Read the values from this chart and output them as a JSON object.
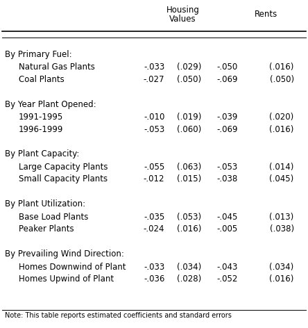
{
  "title_line1": "Housing",
  "title_line2": "Values",
  "title_rents": "Rents",
  "sections": [
    {
      "header": "By Primary Fuel:",
      "rows": [
        {
          "label": "Natural Gas Plants",
          "hv_coef": "-.033",
          "hv_se": "(.029)",
          "r_coef": "-.050",
          "r_se": "(.016)"
        },
        {
          "label": "Coal Plants",
          "hv_coef": "-.027",
          "hv_se": "(.050)",
          "r_coef": "-.069",
          "r_se": "(.050)"
        }
      ]
    },
    {
      "header": "By Year Plant Opened:",
      "rows": [
        {
          "label": "1991-1995",
          "hv_coef": "-.010",
          "hv_se": "(.019)",
          "r_coef": "-.039",
          "r_se": "(.020)"
        },
        {
          "label": "1996-1999",
          "hv_coef": "-.053",
          "hv_se": "(.060)",
          "r_coef": "-.069",
          "r_se": "(.016)"
        }
      ]
    },
    {
      "header": "By Plant Capacity:",
      "rows": [
        {
          "label": "Large Capacity Plants",
          "hv_coef": "-.055",
          "hv_se": "(.063)",
          "r_coef": "-.053",
          "r_se": "(.014)"
        },
        {
          "label": "Small Capacity Plants",
          "hv_coef": "-.012",
          "hv_se": "(.015)",
          "r_coef": "-.038",
          "r_se": "(.045)"
        }
      ]
    },
    {
      "header": "By Plant Utilization:",
      "rows": [
        {
          "label": "Base Load Plants",
          "hv_coef": "-.035",
          "hv_se": "(.053)",
          "r_coef": "-.045",
          "r_se": "(.013)"
        },
        {
          "label": "Peaker Plants",
          "hv_coef": "-.024",
          "hv_se": "(.016)",
          "r_coef": "-.005",
          "r_se": "(.038)"
        }
      ]
    },
    {
      "header": "By Prevailing Wind Direction:",
      "rows": [
        {
          "label": "Homes Downwind of Plant",
          "hv_coef": "-.033",
          "hv_se": "(.034)",
          "r_coef": "-.043",
          "r_se": "(.034)"
        },
        {
          "label": "Homes Upwind of Plant",
          "hv_coef": "-.036",
          "hv_se": "(.028)",
          "r_coef": "-.052",
          "r_se": "(.016)"
        }
      ]
    }
  ],
  "col_x": {
    "label": 0.01,
    "hv_coef": 0.535,
    "hv_se": 0.655,
    "r_coef": 0.775,
    "r_se": 0.96
  },
  "bg_color": "#ffffff",
  "text_color": "#000000",
  "font_size": 8.5,
  "note_text": "Note: This table reports estimated coefficients and standard errors"
}
